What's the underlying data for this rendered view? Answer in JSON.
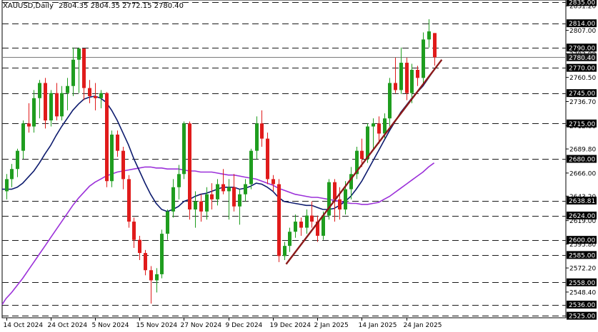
{
  "header": {
    "symbol": "XAUUSD,Daily",
    "ohlc": "2804.35 2804.35 2772.15 2780.40"
  },
  "chart_data": {
    "type": "candlestick",
    "ylim": [
      2523,
      2837
    ],
    "price_ticks": [
      2831.2,
      2807.0,
      2783.9,
      2760.5,
      2736.7,
      2712.8,
      2689.8,
      2666.0,
      2643.2,
      2619.0,
      2595.8,
      2572.2,
      2548.4
    ],
    "levels": [
      2835.0,
      2814.0,
      2790.0,
      2770.0,
      2745.0,
      2715.0,
      2680.0,
      2638.81,
      2624.0,
      2600.0,
      2585.0,
      2558.0,
      2536.0,
      2525.0
    ],
    "current_price": 2780.4,
    "x_labels": [
      {
        "i": 0,
        "label": "14 Oct 2024"
      },
      {
        "i": 8,
        "label": "24 Oct 2024"
      },
      {
        "i": 16,
        "label": "5 Nov 2024"
      },
      {
        "i": 24,
        "label": "15 Nov 2024"
      },
      {
        "i": 32,
        "label": "27 Nov 2024"
      },
      {
        "i": 40,
        "label": "9 Dec 2024"
      },
      {
        "i": 48,
        "label": "19 Dec 2024"
      },
      {
        "i": 56,
        "label": "2 Jan 2025"
      },
      {
        "i": 64,
        "label": "14 Jan 2025"
      },
      {
        "i": 72,
        "label": "24 Jan 2025"
      }
    ],
    "candles": [
      {
        "o": 2648,
        "h": 2665,
        "l": 2640,
        "c": 2660
      },
      {
        "o": 2660,
        "h": 2675,
        "l": 2652,
        "c": 2670
      },
      {
        "o": 2670,
        "h": 2690,
        "l": 2662,
        "c": 2688
      },
      {
        "o": 2688,
        "h": 2718,
        "l": 2680,
        "c": 2715
      },
      {
        "o": 2715,
        "h": 2735,
        "l": 2706,
        "c": 2712
      },
      {
        "o": 2712,
        "h": 2748,
        "l": 2706,
        "c": 2740
      },
      {
        "o": 2740,
        "h": 2758,
        "l": 2720,
        "c": 2755
      },
      {
        "o": 2755,
        "h": 2760,
        "l": 2710,
        "c": 2718
      },
      {
        "o": 2718,
        "h": 2748,
        "l": 2712,
        "c": 2745
      },
      {
        "o": 2745,
        "h": 2755,
        "l": 2718,
        "c": 2722
      },
      {
        "o": 2722,
        "h": 2752,
        "l": 2718,
        "c": 2745
      },
      {
        "o": 2745,
        "h": 2760,
        "l": 2728,
        "c": 2752
      },
      {
        "o": 2752,
        "h": 2790,
        "l": 2742,
        "c": 2778
      },
      {
        "o": 2778,
        "h": 2790,
        "l": 2745,
        "c": 2789
      },
      {
        "o": 2789,
        "h": 2789,
        "l": 2738,
        "c": 2750
      },
      {
        "o": 2750,
        "h": 2758,
        "l": 2735,
        "c": 2742
      },
      {
        "o": 2742,
        "h": 2755,
        "l": 2728,
        "c": 2740
      },
      {
        "o": 2740,
        "h": 2748,
        "l": 2730,
        "c": 2745
      },
      {
        "o": 2745,
        "h": 2746,
        "l": 2652,
        "c": 2658
      },
      {
        "o": 2658,
        "h": 2708,
        "l": 2652,
        "c": 2704
      },
      {
        "o": 2704,
        "h": 2708,
        "l": 2682,
        "c": 2688
      },
      {
        "o": 2688,
        "h": 2692,
        "l": 2650,
        "c": 2660
      },
      {
        "o": 2660,
        "h": 2664,
        "l": 2612,
        "c": 2618
      },
      {
        "o": 2618,
        "h": 2622,
        "l": 2592,
        "c": 2600
      },
      {
        "o": 2600,
        "h": 2604,
        "l": 2580,
        "c": 2587
      },
      {
        "o": 2587,
        "h": 2590,
        "l": 2565,
        "c": 2570
      },
      {
        "o": 2570,
        "h": 2574,
        "l": 2537,
        "c": 2560
      },
      {
        "o": 2560,
        "h": 2572,
        "l": 2548,
        "c": 2566
      },
      {
        "o": 2566,
        "h": 2610,
        "l": 2562,
        "c": 2606
      },
      {
        "o": 2606,
        "h": 2630,
        "l": 2600,
        "c": 2628
      },
      {
        "o": 2628,
        "h": 2660,
        "l": 2622,
        "c": 2652
      },
      {
        "o": 2652,
        "h": 2674,
        "l": 2640,
        "c": 2665
      },
      {
        "o": 2665,
        "h": 2717,
        "l": 2660,
        "c": 2715
      },
      {
        "o": 2715,
        "h": 2717,
        "l": 2620,
        "c": 2630
      },
      {
        "o": 2630,
        "h": 2648,
        "l": 2612,
        "c": 2638
      },
      {
        "o": 2638,
        "h": 2645,
        "l": 2618,
        "c": 2628
      },
      {
        "o": 2628,
        "h": 2652,
        "l": 2620,
        "c": 2645
      },
      {
        "o": 2645,
        "h": 2656,
        "l": 2630,
        "c": 2640
      },
      {
        "o": 2640,
        "h": 2660,
        "l": 2634,
        "c": 2655
      },
      {
        "o": 2655,
        "h": 2670,
        "l": 2645,
        "c": 2648
      },
      {
        "o": 2648,
        "h": 2660,
        "l": 2620,
        "c": 2652
      },
      {
        "o": 2652,
        "h": 2665,
        "l": 2628,
        "c": 2633
      },
      {
        "o": 2633,
        "h": 2650,
        "l": 2615,
        "c": 2645
      },
      {
        "o": 2645,
        "h": 2660,
        "l": 2638,
        "c": 2655
      },
      {
        "o": 2655,
        "h": 2690,
        "l": 2650,
        "c": 2688
      },
      {
        "o": 2688,
        "h": 2722,
        "l": 2680,
        "c": 2715
      },
      {
        "o": 2715,
        "h": 2728,
        "l": 2692,
        "c": 2700
      },
      {
        "o": 2700,
        "h": 2706,
        "l": 2655,
        "c": 2660
      },
      {
        "o": 2660,
        "h": 2664,
        "l": 2648,
        "c": 2655
      },
      {
        "o": 2655,
        "h": 2660,
        "l": 2578,
        "c": 2584
      },
      {
        "o": 2584,
        "h": 2598,
        "l": 2580,
        "c": 2594
      },
      {
        "o": 2594,
        "h": 2612,
        "l": 2588,
        "c": 2608
      },
      {
        "o": 2608,
        "h": 2625,
        "l": 2602,
        "c": 2618
      },
      {
        "o": 2618,
        "h": 2622,
        "l": 2604,
        "c": 2612
      },
      {
        "o": 2612,
        "h": 2630,
        "l": 2606,
        "c": 2624
      },
      {
        "o": 2624,
        "h": 2638,
        "l": 2612,
        "c": 2618
      },
      {
        "o": 2618,
        "h": 2624,
        "l": 2598,
        "c": 2604
      },
      {
        "o": 2604,
        "h": 2628,
        "l": 2600,
        "c": 2624
      },
      {
        "o": 2624,
        "h": 2660,
        "l": 2620,
        "c": 2657
      },
      {
        "o": 2657,
        "h": 2660,
        "l": 2618,
        "c": 2640
      },
      {
        "o": 2640,
        "h": 2652,
        "l": 2620,
        "c": 2630
      },
      {
        "o": 2630,
        "h": 2658,
        "l": 2625,
        "c": 2650
      },
      {
        "o": 2650,
        "h": 2672,
        "l": 2640,
        "c": 2665
      },
      {
        "o": 2665,
        "h": 2692,
        "l": 2660,
        "c": 2688
      },
      {
        "o": 2688,
        "h": 2700,
        "l": 2672,
        "c": 2680
      },
      {
        "o": 2680,
        "h": 2715,
        "l": 2676,
        "c": 2712
      },
      {
        "o": 2712,
        "h": 2720,
        "l": 2690,
        "c": 2715
      },
      {
        "o": 2715,
        "h": 2722,
        "l": 2695,
        "c": 2705
      },
      {
        "o": 2705,
        "h": 2725,
        "l": 2700,
        "c": 2720
      },
      {
        "o": 2720,
        "h": 2760,
        "l": 2712,
        "c": 2755
      },
      {
        "o": 2755,
        "h": 2780,
        "l": 2745,
        "c": 2748
      },
      {
        "o": 2748,
        "h": 2790,
        "l": 2744,
        "c": 2775
      },
      {
        "o": 2775,
        "h": 2780,
        "l": 2738,
        "c": 2745
      },
      {
        "o": 2745,
        "h": 2774,
        "l": 2735,
        "c": 2768
      },
      {
        "o": 2768,
        "h": 2772,
        "l": 2752,
        "c": 2760
      },
      {
        "o": 2760,
        "h": 2805,
        "l": 2755,
        "c": 2798
      },
      {
        "o": 2798,
        "h": 2818,
        "l": 2790,
        "c": 2806
      },
      {
        "o": 2804.35,
        "h": 2804.35,
        "l": 2772.15,
        "c": 2780.4
      }
    ],
    "ma_blue": [
      2650,
      2650,
      2652,
      2656,
      2662,
      2668,
      2676,
      2685,
      2693,
      2703,
      2712,
      2720,
      2728,
      2734,
      2739,
      2741,
      2742,
      2740,
      2736,
      2728,
      2718,
      2706,
      2694,
      2680,
      2668,
      2656,
      2645,
      2636,
      2630,
      2628,
      2630,
      2633,
      2638,
      2640,
      2643,
      2645,
      2646,
      2648,
      2650,
      2652,
      2652,
      2652,
      2650,
      2651,
      2653,
      2656,
      2655,
      2652,
      2648,
      2642,
      2638,
      2637,
      2636,
      2635,
      2634,
      2634,
      2632,
      2630,
      2630,
      2631,
      2634,
      2638,
      2643,
      2650,
      2658,
      2668,
      2678,
      2688,
      2698,
      2708,
      2717,
      2726,
      2733,
      2740,
      2746,
      2752,
      2760,
      2768
    ],
    "ma_purple": [
      2542,
      2548,
      2555,
      2562,
      2570,
      2578,
      2586,
      2594,
      2602,
      2610,
      2618,
      2626,
      2634,
      2641,
      2647,
      2653,
      2657,
      2660,
      2663,
      2665,
      2667,
      2668,
      2669,
      2670,
      2671,
      2672,
      2672,
      2671,
      2671,
      2670,
      2670,
      2670,
      2669,
      2668,
      2668,
      2667,
      2667,
      2667,
      2666,
      2665,
      2664,
      2664,
      2663,
      2662,
      2661,
      2660,
      2658,
      2656,
      2654,
      2651,
      2649,
      2647,
      2645,
      2644,
      2643,
      2642,
      2642,
      2641,
      2640,
      2639,
      2638,
      2637,
      2636,
      2636,
      2635,
      2635,
      2636,
      2637,
      2640,
      2643,
      2647,
      2651,
      2655,
      2659,
      2663,
      2667,
      2672,
      2676
    ],
    "trendline": {
      "i0": 50,
      "p0": 2576,
      "i1": 78,
      "p1": 2778
    }
  }
}
